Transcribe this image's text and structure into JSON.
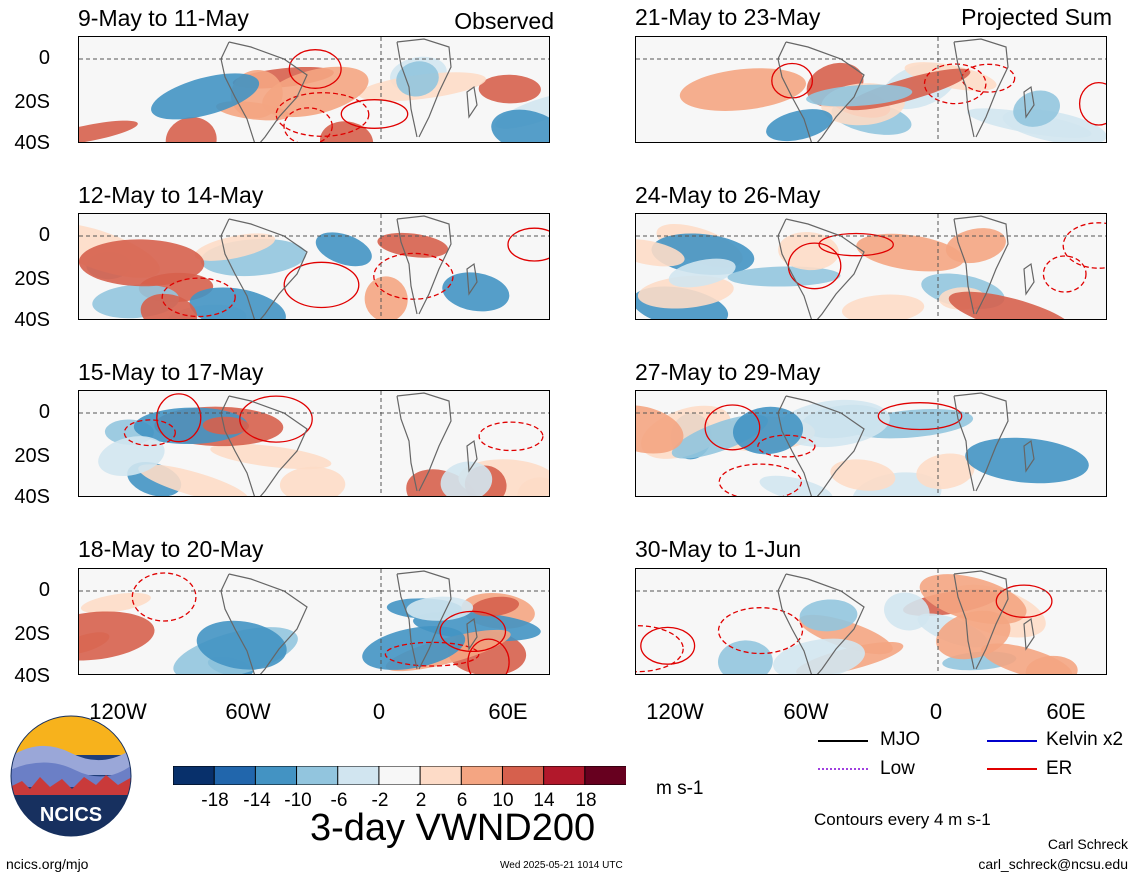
{
  "header": {
    "observed_label": "Observed",
    "projected_label": "Projected Sum"
  },
  "panels": [
    {
      "title": "9-May to 11-May"
    },
    {
      "title": "12-May to 14-May"
    },
    {
      "title": "15-May to 17-May"
    },
    {
      "title": "18-May to 20-May"
    },
    {
      "title": "21-May to 23-May"
    },
    {
      "title": "24-May to 26-May"
    },
    {
      "title": "27-May to 29-May"
    },
    {
      "title": "30-May to 1-Jun"
    }
  ],
  "axes": {
    "y_ticks": [
      "0",
      "20S",
      "40S"
    ],
    "x_ticks": [
      "120W",
      "60W",
      "0",
      "60E"
    ]
  },
  "colorbar": {
    "ticks": [
      "-18",
      "-14",
      "-10",
      "-6",
      "-2",
      "2",
      "6",
      "10",
      "14",
      "18"
    ],
    "colors": [
      "#08306b",
      "#2166ac",
      "#4393c3",
      "#92c5de",
      "#d1e5f0",
      "#f7f7f7",
      "#fddbc7",
      "#f4a582",
      "#d6604d",
      "#b2182b",
      "#67001f"
    ],
    "units": "m s-1"
  },
  "legend": {
    "mjo": "MJO",
    "kelvin": "Kelvin x2",
    "low": "Low",
    "er": "ER",
    "mjo_color": "#000000",
    "kelvin_color": "#0000cc",
    "low_color": "#a040e0",
    "er_color": "#e00000",
    "contours_note": "Contours every 4 m s-1"
  },
  "footer": {
    "main_title": "3-day VWND200",
    "site": "ncics.org/mjo",
    "timestamp": "Wed 2025-05-21 1014 UTC",
    "author": "Carl Schreck",
    "email": "carl_schreck@ncsu.edu"
  },
  "logo": {
    "text": "NCICS"
  }
}
